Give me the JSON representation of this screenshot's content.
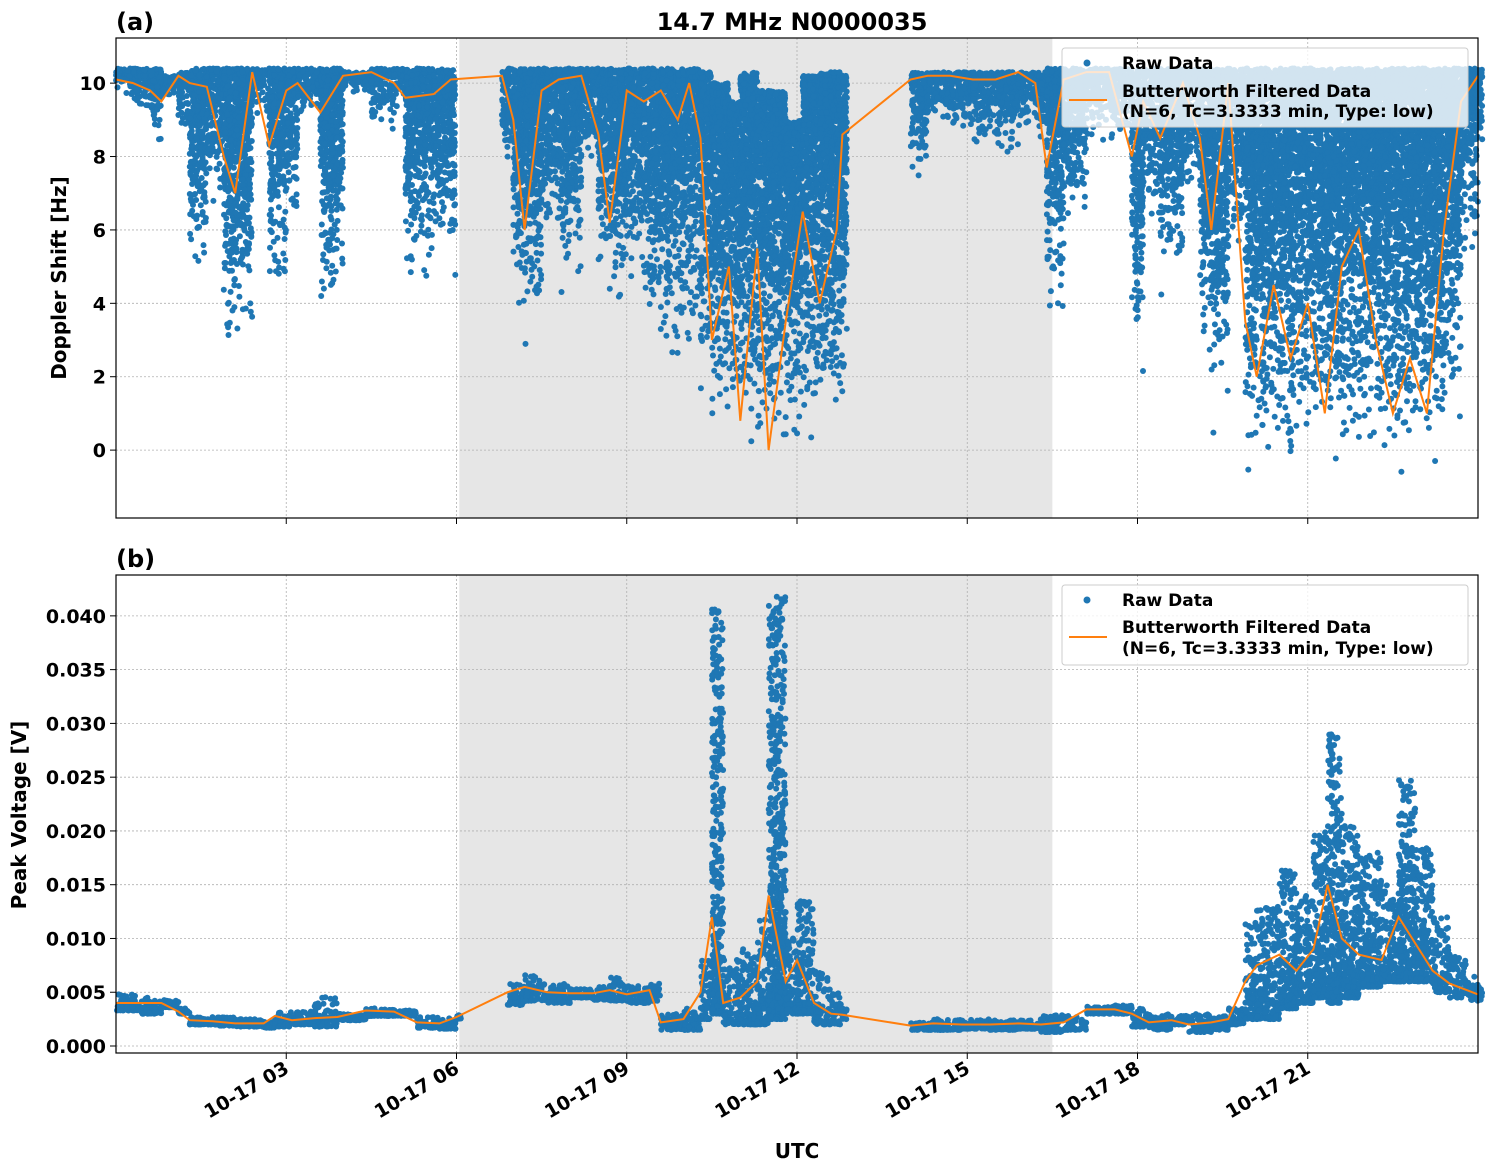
{
  "title": "14.7 MHz N0000035",
  "xlabel": "UTC",
  "x_tick_labels": [
    "10-17 03",
    "10-17 06",
    "10-17 09",
    "10-17 12",
    "10-17 15",
    "10-17 18",
    "10-17 21"
  ],
  "colors": {
    "raw": "#1f77b4",
    "filtered": "#ff7f0e",
    "shade": "#e6e6e6"
  },
  "chart_data": [
    {
      "type": "scatter+line",
      "panel_label": "(a)",
      "ylabel": "Doppler Shift [Hz]",
      "xlim": [
        "10-17 00:00",
        "10-18 00:00"
      ],
      "x_unit": "hours UTC on 10-17",
      "ylim": [
        -1.85,
        11.23
      ],
      "y_ticks": [
        "0",
        "2",
        "4",
        "6",
        "8",
        "10"
      ],
      "y_tick_values": [
        0,
        2,
        4,
        6,
        8,
        10
      ],
      "grid": true,
      "legend_position": "top-right",
      "shaded_span_hours": [
        6.05,
        16.5
      ],
      "legend": [
        "Raw Data",
        "Butterworth Filtered Data",
        "(N=6, Tc=3.3333 min, Type: low)"
      ],
      "bins_columns": [
        "hour",
        "raw_min",
        "raw_max",
        "filtered"
      ],
      "bins": [
        [
          0.0,
          9.5,
          10.4,
          10.1
        ],
        [
          0.3,
          8.9,
          10.4,
          10.0
        ],
        [
          0.6,
          8.1,
          10.4,
          9.8
        ],
        [
          0.8,
          9.5,
          10.2,
          9.5
        ],
        [
          1.1,
          8.4,
          10.3,
          10.2
        ],
        [
          1.3,
          4.5,
          10.4,
          10.0
        ],
        [
          1.6,
          6.6,
          10.4,
          9.9
        ],
        [
          1.9,
          2.0,
          10.4,
          8.0
        ],
        [
          2.1,
          2.6,
          10.4,
          7.0
        ],
        [
          2.4,
          9.0,
          10.4,
          10.3
        ],
        [
          2.7,
          3.9,
          10.4,
          8.3
        ],
        [
          3.0,
          5.8,
          10.4,
          9.8
        ],
        [
          3.2,
          8.8,
          10.4,
          10.0
        ],
        [
          3.6,
          3.1,
          10.4,
          9.2
        ],
        [
          4.0,
          9.6,
          10.3,
          10.2
        ],
        [
          4.5,
          8.6,
          10.4,
          10.3
        ],
        [
          4.9,
          9.2,
          10.4,
          10.0
        ],
        [
          5.1,
          4.3,
          10.4,
          9.6
        ],
        [
          5.6,
          5.1,
          10.4,
          9.7
        ],
        [
          5.9,
          4.6,
          10.4,
          10.1
        ],
        [
          6.8,
          7.3,
          10.4,
          10.2
        ],
        [
          7.0,
          3.3,
          10.4,
          9.0
        ],
        [
          7.2,
          2.6,
          10.4,
          6.0
        ],
        [
          7.5,
          5.0,
          10.4,
          9.8
        ],
        [
          7.8,
          4.2,
          10.4,
          10.1
        ],
        [
          8.2,
          7.4,
          10.4,
          10.2
        ],
        [
          8.5,
          4.0,
          10.4,
          8.6
        ],
        [
          8.7,
          3.3,
          10.4,
          6.2
        ],
        [
          9.0,
          4.5,
          10.4,
          9.8
        ],
        [
          9.3,
          3.0,
          10.4,
          9.5
        ],
        [
          9.6,
          2.0,
          10.4,
          9.8
        ],
        [
          9.9,
          2.2,
          10.4,
          9.0
        ],
        [
          10.1,
          2.8,
          10.4,
          10.0
        ],
        [
          10.3,
          1.0,
          10.3,
          8.5
        ],
        [
          10.5,
          -0.1,
          10.0,
          3.0
        ],
        [
          10.8,
          -0.2,
          9.5,
          5.0
        ],
        [
          11.0,
          -0.3,
          10.3,
          0.8
        ],
        [
          11.3,
          -0.4,
          9.8,
          5.5
        ],
        [
          11.5,
          -0.5,
          9.8,
          0.0
        ],
        [
          11.8,
          -0.3,
          9.0,
          3.5
        ],
        [
          12.1,
          -0.2,
          10.2,
          6.5
        ],
        [
          12.4,
          -0.2,
          10.3,
          4.0
        ],
        [
          12.7,
          -0.1,
          10.3,
          6.0
        ],
        [
          12.8,
          0.5,
          10.2,
          8.6
        ],
        [
          14.0,
          7.3,
          10.3,
          10.1
        ],
        [
          14.3,
          8.8,
          10.3,
          10.2
        ],
        [
          14.7,
          8.4,
          10.3,
          10.2
        ],
        [
          15.1,
          8.0,
          10.3,
          10.1
        ],
        [
          15.5,
          7.6,
          10.3,
          10.1
        ],
        [
          15.9,
          8.6,
          10.3,
          10.3
        ],
        [
          16.2,
          8.0,
          10.3,
          10.0
        ],
        [
          16.4,
          3.3,
          10.4,
          7.7
        ],
        [
          16.7,
          5.7,
          10.4,
          10.1
        ],
        [
          17.1,
          8.3,
          10.4,
          10.3
        ],
        [
          17.5,
          8.0,
          10.4,
          10.3
        ],
        [
          17.9,
          1.9,
          10.4,
          8.0
        ],
        [
          18.1,
          6.0,
          10.4,
          9.5
        ],
        [
          18.4,
          4.0,
          10.4,
          8.5
        ],
        [
          18.8,
          6.3,
          10.4,
          10.0
        ],
        [
          19.1,
          1.8,
          10.4,
          8.5
        ],
        [
          19.3,
          0.3,
          10.4,
          6.0
        ],
        [
          19.6,
          5.0,
          10.4,
          10.0
        ],
        [
          19.9,
          -1.0,
          10.4,
          3.5
        ],
        [
          20.1,
          -0.8,
          10.4,
          2.0
        ],
        [
          20.4,
          -0.9,
          10.4,
          4.5
        ],
        [
          20.7,
          -0.7,
          10.4,
          2.5
        ],
        [
          21.0,
          -0.6,
          10.4,
          4.0
        ],
        [
          21.3,
          -0.8,
          10.4,
          1.0
        ],
        [
          21.6,
          -0.7,
          10.4,
          5.0
        ],
        [
          21.9,
          -0.5,
          10.4,
          6.0
        ],
        [
          22.2,
          -0.9,
          10.4,
          3.0
        ],
        [
          22.5,
          -1.2,
          10.4,
          1.0
        ],
        [
          22.8,
          -1.0,
          10.4,
          2.5
        ],
        [
          23.1,
          -1.0,
          10.4,
          1.0
        ],
        [
          23.4,
          0.0,
          10.4,
          6.0
        ],
        [
          23.7,
          5.0,
          10.4,
          9.5
        ],
        [
          24.0,
          8.0,
          10.4,
          10.2
        ]
      ]
    },
    {
      "type": "scatter+line",
      "panel_label": "(b)",
      "ylabel": "Peak Voltage [V]",
      "xlim": [
        "10-17 00:00",
        "10-18 00:00"
      ],
      "x_unit": "hours UTC on 10-17",
      "ylim": [
        -0.00065,
        0.0438
      ],
      "y_ticks": [
        "0.000",
        "0.005",
        "0.010",
        "0.015",
        "0.020",
        "0.025",
        "0.030",
        "0.035",
        "0.040"
      ],
      "y_tick_values": [
        0,
        0.005,
        0.01,
        0.015,
        0.02,
        0.025,
        0.03,
        0.035,
        0.04
      ],
      "grid": true,
      "legend_position": "top-right",
      "shaded_span_hours": [
        6.05,
        16.5
      ],
      "legend": [
        "Raw Data",
        "Butterworth Filtered Data",
        "(N=6, Tc=3.3333 min, Type: low)"
      ],
      "bins_columns": [
        "hour",
        "raw_min",
        "raw_max",
        "filtered"
      ],
      "bins": [
        [
          0.0,
          0.0033,
          0.0048,
          0.004
        ],
        [
          0.4,
          0.003,
          0.0045,
          0.004
        ],
        [
          0.8,
          0.0036,
          0.0043,
          0.004
        ],
        [
          1.1,
          0.003,
          0.0035,
          0.0032
        ],
        [
          1.3,
          0.002,
          0.0027,
          0.0024
        ],
        [
          1.7,
          0.0019,
          0.0027,
          0.0023
        ],
        [
          2.1,
          0.0018,
          0.0025,
          0.0021
        ],
        [
          2.6,
          0.0017,
          0.0023,
          0.0021
        ],
        [
          2.8,
          0.0018,
          0.0032,
          0.0028
        ],
        [
          3.1,
          0.002,
          0.0032,
          0.0024
        ],
        [
          3.5,
          0.0018,
          0.0046,
          0.0026
        ],
        [
          3.9,
          0.0024,
          0.003,
          0.0027
        ],
        [
          4.4,
          0.0028,
          0.0035,
          0.0033
        ],
        [
          4.9,
          0.0028,
          0.0034,
          0.0032
        ],
        [
          5.3,
          0.0017,
          0.0027,
          0.0022
        ],
        [
          5.7,
          0.0016,
          0.0026,
          0.0021
        ],
        [
          6.0,
          0.0025,
          0.003,
          0.0027
        ],
        [
          6.9,
          0.0038,
          0.0058,
          0.005
        ],
        [
          7.2,
          0.0042,
          0.0066,
          0.0055
        ],
        [
          7.6,
          0.004,
          0.0058,
          0.005
        ],
        [
          8.0,
          0.0045,
          0.0053,
          0.0049
        ],
        [
          8.4,
          0.0043,
          0.0055,
          0.0049
        ],
        [
          8.7,
          0.0042,
          0.0064,
          0.0052
        ],
        [
          9.0,
          0.004,
          0.0056,
          0.0048
        ],
        [
          9.4,
          0.0042,
          0.0058,
          0.0052
        ],
        [
          9.6,
          0.0015,
          0.003,
          0.0022
        ],
        [
          10.0,
          0.0015,
          0.0035,
          0.0025
        ],
        [
          10.3,
          0.0025,
          0.008,
          0.005
        ],
        [
          10.5,
          0.003,
          0.0408,
          0.012
        ],
        [
          10.7,
          0.002,
          0.008,
          0.004
        ],
        [
          11.0,
          0.002,
          0.009,
          0.0045
        ],
        [
          11.3,
          0.002,
          0.012,
          0.006
        ],
        [
          11.5,
          0.0025,
          0.0418,
          0.014
        ],
        [
          11.8,
          0.003,
          0.01,
          0.006
        ],
        [
          12.0,
          0.003,
          0.0135,
          0.008
        ],
        [
          12.3,
          0.002,
          0.007,
          0.004
        ],
        [
          12.6,
          0.002,
          0.005,
          0.003
        ],
        [
          12.8,
          0.0025,
          0.0035,
          0.0029
        ],
        [
          14.0,
          0.0015,
          0.0022,
          0.0019
        ],
        [
          14.4,
          0.0015,
          0.0025,
          0.0021
        ],
        [
          14.9,
          0.0016,
          0.0025,
          0.002
        ],
        [
          15.4,
          0.0015,
          0.0024,
          0.002
        ],
        [
          15.9,
          0.0016,
          0.0025,
          0.0021
        ],
        [
          16.3,
          0.0013,
          0.003,
          0.002
        ],
        [
          16.7,
          0.0015,
          0.0028,
          0.0022
        ],
        [
          17.1,
          0.003,
          0.0037,
          0.0034
        ],
        [
          17.6,
          0.003,
          0.0038,
          0.0034
        ],
        [
          17.9,
          0.0018,
          0.0035,
          0.003
        ],
        [
          18.2,
          0.0015,
          0.003,
          0.0022
        ],
        [
          18.6,
          0.002,
          0.0028,
          0.0024
        ],
        [
          18.9,
          0.0013,
          0.003,
          0.002
        ],
        [
          19.3,
          0.0015,
          0.0028,
          0.0022
        ],
        [
          19.6,
          0.002,
          0.0035,
          0.0025
        ],
        [
          19.9,
          0.0025,
          0.0115,
          0.006
        ],
        [
          20.1,
          0.0025,
          0.013,
          0.0075
        ],
        [
          20.5,
          0.0035,
          0.0165,
          0.0085
        ],
        [
          20.8,
          0.004,
          0.014,
          0.007
        ],
        [
          21.1,
          0.0045,
          0.02,
          0.009
        ],
        [
          21.35,
          0.004,
          0.029,
          0.015
        ],
        [
          21.6,
          0.0045,
          0.0205,
          0.01
        ],
        [
          21.9,
          0.0055,
          0.018,
          0.0085
        ],
        [
          22.3,
          0.006,
          0.015,
          0.008
        ],
        [
          22.6,
          0.006,
          0.0248,
          0.012
        ],
        [
          22.9,
          0.006,
          0.0185,
          0.0095
        ],
        [
          23.2,
          0.005,
          0.012,
          0.007
        ],
        [
          23.5,
          0.0045,
          0.0085,
          0.0058
        ],
        [
          23.8,
          0.0042,
          0.0065,
          0.0052
        ],
        [
          24.0,
          0.0043,
          0.0055,
          0.0048
        ]
      ]
    }
  ]
}
